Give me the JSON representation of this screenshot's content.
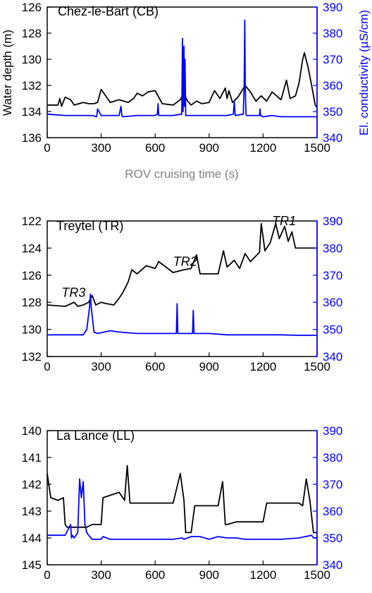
{
  "colors": {
    "depth": "#000000",
    "conductivity": "#0000ff",
    "axes": "#000000",
    "right_axis": "#0000ff"
  },
  "chart_data": [
    {
      "type": "line",
      "title": "Chez-le-Bart (CB)",
      "xlabel": "ROV cruising time (s)",
      "ylabel": "Water depth (m)",
      "y2label": "El. conductivity (µS/cm)",
      "xlim": [
        0,
        1500
      ],
      "ylim": [
        126,
        136
      ],
      "y_inverted": true,
      "y2lim": [
        340,
        390
      ],
      "xticks": [
        "0",
        "300",
        "600",
        "900",
        "1200",
        "1500"
      ],
      "yticks": [
        "126",
        "128",
        "130",
        "132",
        "134",
        "136"
      ],
      "y2ticks": [
        "340",
        "350",
        "360",
        "370",
        "380",
        "390"
      ],
      "annotations": [],
      "series": [
        {
          "axis": "left",
          "color": "#000000",
          "x": [
            0,
            60,
            70,
            80,
            100,
            130,
            150,
            200,
            230,
            260,
            280,
            300,
            320,
            350,
            400,
            450,
            480,
            500,
            530,
            560,
            600,
            640,
            700,
            740,
            760,
            780,
            800,
            830,
            860,
            900,
            930,
            960,
            990,
            1000,
            1010,
            1030,
            1060,
            1100,
            1130,
            1160,
            1190,
            1220,
            1250,
            1300,
            1330,
            1350,
            1380,
            1400,
            1420,
            1430,
            1450,
            1470,
            1490,
            1500
          ],
          "y": [
            133.5,
            133.5,
            133.0,
            133.6,
            132.9,
            133.1,
            133.5,
            133.3,
            133.4,
            133.4,
            133.3,
            132.3,
            132.7,
            133.3,
            133.1,
            133.3,
            133.0,
            132.6,
            132.8,
            132.5,
            132.4,
            133.4,
            133.5,
            133.1,
            132.6,
            133.2,
            133.5,
            133.2,
            133.4,
            133.3,
            132.4,
            133.0,
            132.2,
            133.0,
            132.4,
            133.3,
            132.9,
            132.0,
            132.5,
            133.2,
            132.8,
            133.2,
            132.5,
            133.1,
            131.6,
            133.0,
            132.8,
            131.8,
            130.0,
            129.5,
            130.6,
            132.0,
            133.5,
            133.7
          ]
        },
        {
          "axis": "right",
          "color": "#0000ff",
          "x": [
            0,
            100,
            250,
            275,
            280,
            300,
            400,
            410,
            415,
            420,
            500,
            600,
            612,
            616,
            620,
            700,
            748,
            752,
            755,
            760,
            763,
            766,
            770,
            800,
            900,
            1000,
            1035,
            1040,
            1045,
            1090,
            1095,
            1098,
            1101,
            1105,
            1108,
            1150,
            1180,
            1183,
            1186,
            1200,
            1250,
            1300,
            1400,
            1500
          ],
          "y": [
            349,
            348.5,
            348.5,
            348,
            351,
            348.5,
            348.5,
            352,
            348.5,
            348,
            348.5,
            348.5,
            349,
            353,
            348.5,
            348.5,
            349,
            378,
            350,
            375,
            352,
            370,
            348.5,
            348.5,
            348.5,
            348.5,
            349,
            354,
            348.5,
            349,
            360,
            385,
            360,
            349,
            348.5,
            348.5,
            348.5,
            351,
            348.5,
            348,
            348.5,
            348,
            348,
            348
          ]
        }
      ]
    },
    {
      "type": "line",
      "title": "Treytel (TR)",
      "xlabel": "",
      "ylabel": "",
      "y2label": "",
      "xlim": [
        0,
        1500
      ],
      "ylim": [
        122,
        132
      ],
      "y_inverted": true,
      "y2lim": [
        340,
        390
      ],
      "xticks": [
        "0",
        "300",
        "600",
        "900",
        "1200",
        "1500"
      ],
      "yticks": [
        "122",
        "124",
        "126",
        "128",
        "130",
        "132"
      ],
      "y2ticks": [
        "340",
        "350",
        "360",
        "370",
        "380",
        "390"
      ],
      "annotations": [
        {
          "text": "TR3",
          "x": 80,
          "y": 127.6
        },
        {
          "text": "TR2",
          "x": 700,
          "y": 125.3
        },
        {
          "text": "TR1",
          "x": 1250,
          "y": 122.3
        }
      ],
      "series": [
        {
          "axis": "left",
          "color": "#000000",
          "x": [
            0,
            100,
            150,
            170,
            200,
            230,
            250,
            270,
            300,
            330,
            370,
            400,
            420,
            450,
            470,
            500,
            550,
            600,
            620,
            650,
            700,
            760,
            800,
            830,
            850,
            900,
            950,
            980,
            1000,
            1040,
            1070,
            1100,
            1130,
            1180,
            1190,
            1210,
            1240,
            1270,
            1290,
            1320,
            1340,
            1360,
            1380,
            1400,
            1500
          ],
          "y": [
            128.2,
            128.3,
            128.0,
            128.3,
            128.2,
            128.0,
            127.5,
            128.2,
            128.0,
            128.1,
            128.2,
            127.7,
            127.3,
            126.5,
            125.6,
            125.9,
            125.3,
            125.5,
            125.0,
            125.3,
            125.8,
            125.6,
            125.5,
            124.5,
            125.9,
            125.9,
            125.9,
            124.2,
            125.4,
            124.9,
            125.5,
            124.4,
            125.0,
            124.3,
            122.2,
            124.2,
            123.6,
            122.2,
            123.3,
            122.4,
            123.5,
            122.8,
            124.0,
            124.0,
            124.0
          ]
        },
        {
          "axis": "right",
          "color": "#0000ff",
          "x": [
            0,
            200,
            220,
            235,
            240,
            245,
            260,
            280,
            350,
            400,
            500,
            600,
            700,
            718,
            722,
            726,
            740,
            800,
            808,
            812,
            816,
            900,
            1000,
            1100,
            1200,
            1300,
            1400,
            1500
          ],
          "y": [
            348,
            348,
            350,
            358,
            363,
            358,
            349,
            348.5,
            349.5,
            349,
            348.5,
            348.5,
            348.5,
            348.5,
            359.5,
            348.5,
            348.5,
            348.5,
            348.5,
            357,
            348.5,
            348.5,
            348,
            348,
            348,
            348,
            347.8,
            347.8
          ]
        }
      ]
    },
    {
      "type": "line",
      "title": "La Lance (LL)",
      "xlabel": "",
      "ylabel": "",
      "y2label": "",
      "xlim": [
        0,
        1500
      ],
      "ylim": [
        140,
        145
      ],
      "y_inverted": true,
      "y2lim": [
        340,
        390
      ],
      "xticks": [
        "0",
        "300",
        "600",
        "900",
        "1200",
        "1500"
      ],
      "yticks": [
        "140",
        "141",
        "142",
        "143",
        "144",
        "145"
      ],
      "y2ticks": [
        "340",
        "350",
        "360",
        "370",
        "380",
        "390"
      ],
      "annotations": [],
      "series": [
        {
          "axis": "left",
          "color": "#000000",
          "x": [
            0,
            20,
            60,
            90,
            100,
            110,
            200,
            220,
            250,
            300,
            310,
            400,
            430,
            445,
            460,
            480,
            600,
            700,
            740,
            760,
            770,
            800,
            820,
            860,
            950,
            975,
            990,
            1000,
            1050,
            1200,
            1220,
            1250,
            1300,
            1400,
            1420,
            1440,
            1460,
            1480,
            1490,
            1500
          ],
          "y": [
            141.6,
            142.5,
            142.6,
            142.5,
            143.5,
            143.6,
            143.6,
            143.6,
            143.5,
            143.5,
            142.5,
            142.3,
            142.6,
            141.3,
            142.7,
            142.7,
            142.7,
            142.7,
            141.6,
            142.6,
            143.8,
            143.8,
            142.8,
            142.8,
            142.8,
            141.9,
            143.5,
            143.5,
            143.4,
            143.4,
            142.7,
            142.7,
            142.7,
            142.7,
            142.8,
            141.8,
            142.6,
            143.8,
            143.8,
            143.8
          ]
        },
        {
          "axis": "right",
          "color": "#0000ff",
          "x": [
            0,
            100,
            130,
            135,
            140,
            150,
            170,
            180,
            190,
            200,
            210,
            220,
            230,
            250,
            300,
            310,
            350,
            400,
            500,
            600,
            700,
            750,
            760,
            800,
            850,
            900,
            950,
            1000,
            1050,
            1100,
            1200,
            1300,
            1400,
            1470,
            1480,
            1500
          ],
          "y": [
            351,
            351,
            355,
            350,
            351,
            350,
            352,
            372,
            365,
            371,
            355,
            352,
            351,
            349.5,
            349.5,
            350.5,
            349.5,
            349.5,
            349.5,
            349.5,
            349.5,
            350,
            349.5,
            350.5,
            350.5,
            349.5,
            350.5,
            350,
            350,
            349.5,
            349.5,
            349.5,
            350,
            351,
            350,
            350
          ]
        }
      ]
    }
  ]
}
